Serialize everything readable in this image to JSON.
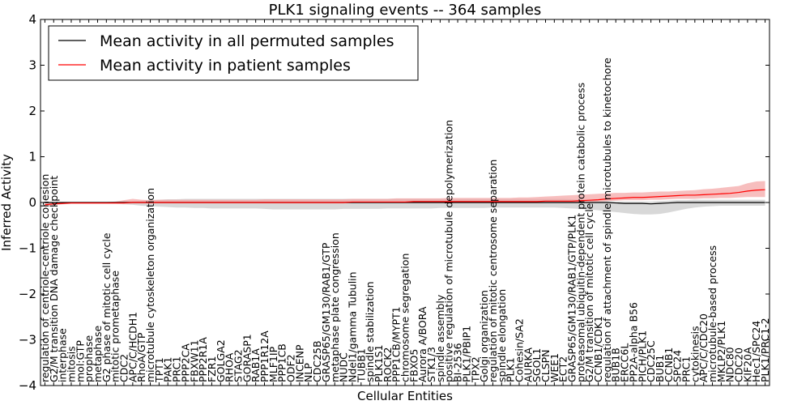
{
  "chart_data": {
    "type": "line",
    "title": "PLK1 signaling events -- 364 samples",
    "xlabel": "Cellular Entities",
    "ylabel": "Inferred Activity",
    "ylim": [
      -4,
      4
    ],
    "yticks": [
      "4",
      "3",
      "2",
      "1",
      "0",
      "−1",
      "−2",
      "−3",
      "−4"
    ],
    "legend_position": "top-left",
    "colors": {
      "permuted": "#000000",
      "patient": "#ff0000",
      "patient_band": "#f4a3a3",
      "permuted_band": "#c8c8c8"
    },
    "categories": [
      "regulation of centriole-centriole cohesion",
      "G2/M transition DNA damage checkpoint",
      "interphase",
      "mitosis",
      "mol:GTP",
      "prophase",
      "metaphase",
      "G2 phase of mitotic cell cycle",
      "mitotic prometaphase",
      "CDC2",
      "APC/C/HCDH1",
      "RhoA/GTP",
      "microtubule cytoskeleton organization",
      "TPT1",
      "PAK1",
      "PRC1",
      "PPP2CA",
      "FBXW11",
      "PPP2R1A",
      "FZR1",
      "GOLGA2",
      "RHOA",
      "STAG2",
      "GORASP1",
      "RAB1A",
      "PPP1R12A",
      "MLF1IP",
      "PPP1CB",
      "ODF2",
      "INCENP",
      "NLP",
      "CDC25B",
      "GRASP65/GM130/RAB1/GTP",
      "metaphase plate congression",
      "NUDC",
      "Ndel1/gamma Tubulin",
      "TUBB1",
      "spindle stabilization",
      "PLK1S1",
      "ROCK2",
      "PPP1CB/MYPT1",
      "chromosome segregation",
      "FBXO5",
      "Aurora A/BORA",
      "STK1/3",
      "spindle assembly",
      "positive regulation of microtubule depolymerization",
      "BI-2536",
      "PLK1/PBIP1",
      "TPX2",
      "Golgi organization",
      "regulation of mitotic centrosome separation",
      "spindle elongation",
      "PLK1",
      "Cohesin/SA2",
      "AURKA",
      "SGOL1",
      "CLSPN",
      "WEE1",
      "ECT2",
      "GRASP65/GM130/RAB1/GTP/PLK1",
      "proteasomal ubiquitin-dependent protein catabolic process",
      "G2/M transition of mitotic cell cycle",
      "CCNB1/CDK1",
      "regulation of attachment of spindle microtubules to kinetochore",
      "BUB1B",
      "ERCC6L",
      "PP2A-alpha B56",
      "PICH/PLK1",
      "CDC25C",
      "BUB1",
      "CCNB1",
      "SPC24",
      "PRC1",
      "cytokinesis",
      "APC/C/CDC20",
      "microtubule-based process",
      "MKLP2/PLK1",
      "NDC80",
      "CDC20",
      "KIF20A",
      "Hec1/SPC24",
      "PLK1/PRC1-2"
    ],
    "series": [
      {
        "name": "Mean activity in all permuted samples",
        "values": [
          0.0,
          0.0,
          0.0,
          0.0,
          0.0,
          0.0,
          0.0,
          0.0,
          0.0,
          0.0,
          0.0,
          0.0,
          0.0,
          0.0,
          0.0,
          0.0,
          0.0,
          0.0,
          0.0,
          0.0,
          0.0,
          0.0,
          0.0,
          0.0,
          0.0,
          0.0,
          0.0,
          0.0,
          0.0,
          0.0,
          0.0,
          0.0,
          0.0,
          0.0,
          0.0,
          0.0,
          0.0,
          0.0,
          0.0,
          0.0,
          0.0,
          0.0,
          0.0,
          0.0,
          0.0,
          0.0,
          0.0,
          0.0,
          0.0,
          0.0,
          0.0,
          0.0,
          0.0,
          0.0,
          0.0,
          0.0,
          0.0,
          0.0,
          0.0,
          0.0,
          0.0,
          0.0,
          0.0,
          0.0,
          0.0,
          -0.01,
          -0.02,
          -0.02,
          -0.02,
          -0.03,
          -0.02,
          -0.01,
          0.0,
          0.0,
          0.0,
          0.0,
          0.0,
          0.0,
          0.0,
          0.0,
          0.0,
          0.0,
          0.0
        ],
        "band_low": [
          -0.02,
          -0.03,
          -0.03,
          -0.03,
          -0.03,
          -0.03,
          -0.03,
          -0.03,
          -0.03,
          -0.04,
          -0.05,
          -0.07,
          -0.08,
          -0.09,
          -0.1,
          -0.11,
          -0.11,
          -0.12,
          -0.12,
          -0.13,
          -0.13,
          -0.13,
          -0.13,
          -0.13,
          -0.13,
          -0.14,
          -0.15,
          -0.15,
          -0.15,
          -0.15,
          -0.15,
          -0.15,
          -0.15,
          -0.15,
          -0.14,
          -0.14,
          -0.14,
          -0.14,
          -0.14,
          -0.13,
          -0.13,
          -0.13,
          -0.13,
          -0.13,
          -0.13,
          -0.12,
          -0.12,
          -0.12,
          -0.12,
          -0.12,
          -0.12,
          -0.11,
          -0.11,
          -0.11,
          -0.11,
          -0.11,
          -0.11,
          -0.11,
          -0.11,
          -0.12,
          -0.13,
          -0.14,
          -0.15,
          -0.17,
          -0.19,
          -0.21,
          -0.23,
          -0.25,
          -0.26,
          -0.26,
          -0.25,
          -0.22,
          -0.18,
          -0.14,
          -0.11,
          -0.09,
          -0.08,
          -0.07,
          -0.07,
          -0.07,
          -0.07,
          -0.07,
          -0.07
        ],
        "band_high": [
          0.0,
          0.01,
          0.01,
          0.01,
          0.01,
          0.01,
          0.01,
          0.01,
          0.01,
          0.02,
          0.03,
          0.04,
          0.05,
          0.06,
          0.07,
          0.07,
          0.08,
          0.08,
          0.08,
          0.08,
          0.08,
          0.08,
          0.08,
          0.08,
          0.08,
          0.08,
          0.08,
          0.08,
          0.08,
          0.08,
          0.08,
          0.08,
          0.08,
          0.08,
          0.08,
          0.08,
          0.08,
          0.08,
          0.08,
          0.08,
          0.08,
          0.08,
          0.08,
          0.08,
          0.08,
          0.08,
          0.08,
          0.08,
          0.08,
          0.08,
          0.08,
          0.08,
          0.08,
          0.08,
          0.08,
          0.08,
          0.08,
          0.08,
          0.08,
          0.08,
          0.07,
          0.06,
          0.05,
          0.04,
          0.03,
          0.02,
          0.02,
          0.02,
          0.02,
          0.02,
          0.03,
          0.04,
          0.05,
          0.05,
          0.06,
          0.06,
          0.06,
          0.06,
          0.06,
          0.06,
          0.06,
          0.06,
          0.06
        ]
      },
      {
        "name": "Mean activity in patient samples",
        "values": [
          -0.05,
          -0.03,
          -0.02,
          -0.01,
          -0.01,
          -0.01,
          -0.01,
          -0.01,
          -0.01,
          -0.01,
          0.0,
          0.0,
          0.0,
          0.0,
          0.0,
          0.0,
          0.0,
          0.0,
          0.0,
          0.0,
          0.0,
          0.0,
          0.0,
          0.0,
          0.0,
          0.0,
          0.0,
          0.0,
          0.0,
          0.0,
          0.0,
          0.0,
          0.0,
          0.0,
          0.0,
          0.01,
          0.01,
          0.01,
          0.01,
          0.01,
          0.01,
          0.01,
          0.02,
          0.02,
          0.02,
          0.02,
          0.02,
          0.02,
          0.02,
          0.02,
          0.02,
          0.02,
          0.02,
          0.02,
          0.02,
          0.02,
          0.02,
          0.03,
          0.03,
          0.03,
          0.03,
          0.04,
          0.05,
          0.06,
          0.08,
          0.09,
          0.1,
          0.11,
          0.11,
          0.12,
          0.13,
          0.14,
          0.15,
          0.16,
          0.16,
          0.17,
          0.18,
          0.19,
          0.2,
          0.22,
          0.25,
          0.27,
          0.28
        ],
        "band_low": [
          -0.09,
          -0.06,
          -0.04,
          -0.03,
          -0.03,
          -0.03,
          -0.03,
          -0.03,
          -0.03,
          -0.03,
          -0.02,
          -0.02,
          -0.02,
          -0.02,
          -0.02,
          -0.02,
          -0.02,
          -0.02,
          -0.02,
          -0.02,
          -0.02,
          -0.02,
          -0.02,
          -0.02,
          -0.02,
          -0.02,
          -0.02,
          -0.02,
          -0.02,
          -0.02,
          -0.02,
          -0.02,
          -0.02,
          -0.02,
          -0.02,
          -0.01,
          -0.01,
          -0.01,
          -0.01,
          -0.01,
          -0.01,
          -0.01,
          0.0,
          0.0,
          0.0,
          0.0,
          0.0,
          0.0,
          0.0,
          0.0,
          0.0,
          0.0,
          0.0,
          0.0,
          0.0,
          0.0,
          0.0,
          0.0,
          0.0,
          0.0,
          0.0,
          0.01,
          0.01,
          0.02,
          0.03,
          0.04,
          0.05,
          0.05,
          0.05,
          0.06,
          0.06,
          0.07,
          0.08,
          0.08,
          0.08,
          0.09,
          0.09,
          0.1,
          0.1,
          0.11,
          0.12,
          0.12,
          0.12
        ],
        "band_high": [
          -0.01,
          0.0,
          0.0,
          0.01,
          0.01,
          0.01,
          0.01,
          0.01,
          0.02,
          0.05,
          0.08,
          0.06,
          0.05,
          0.06,
          0.06,
          0.06,
          0.06,
          0.06,
          0.06,
          0.06,
          0.06,
          0.06,
          0.06,
          0.06,
          0.06,
          0.07,
          0.07,
          0.07,
          0.07,
          0.07,
          0.07,
          0.07,
          0.07,
          0.07,
          0.07,
          0.08,
          0.08,
          0.08,
          0.08,
          0.08,
          0.09,
          0.09,
          0.09,
          0.09,
          0.09,
          0.09,
          0.1,
          0.1,
          0.1,
          0.1,
          0.1,
          0.1,
          0.1,
          0.1,
          0.11,
          0.11,
          0.12,
          0.13,
          0.14,
          0.15,
          0.16,
          0.17,
          0.18,
          0.19,
          0.2,
          0.21,
          0.21,
          0.22,
          0.22,
          0.23,
          0.24,
          0.24,
          0.25,
          0.26,
          0.27,
          0.29,
          0.3,
          0.32,
          0.34,
          0.36,
          0.42,
          0.46,
          0.47
        ]
      }
    ]
  }
}
